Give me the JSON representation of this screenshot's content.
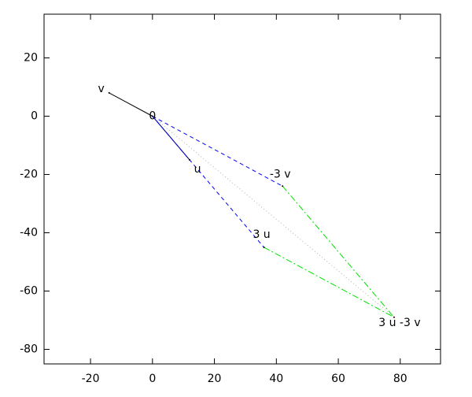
{
  "chart_data": {
    "type": "vector",
    "xlim": [
      -35,
      93
    ],
    "ylim": [
      -85,
      35
    ],
    "xticks": [
      -20,
      0,
      20,
      40,
      60,
      80
    ],
    "yticks": [
      -80,
      -60,
      -40,
      -20,
      0,
      20
    ],
    "points": [
      {
        "label": "v",
        "x": -14,
        "y": 8
      },
      {
        "label": "0",
        "x": 0,
        "y": 0
      },
      {
        "label": "u",
        "x": 12,
        "y": -15
      },
      {
        "label": "-3 v",
        "x": 42,
        "y": -24
      },
      {
        "label": "3 u",
        "x": 36,
        "y": -45
      },
      {
        "label": "3 u -3 v",
        "x": 78,
        "y": -69
      }
    ],
    "segments": [
      {
        "x": [
          0,
          -14
        ],
        "y": [
          0,
          8
        ],
        "color": "#000000",
        "dash": "solid"
      },
      {
        "x": [
          0,
          12
        ],
        "y": [
          0,
          -15
        ],
        "color": "#000080",
        "dash": "solid"
      },
      {
        "x": [
          0,
          36
        ],
        "y": [
          0,
          -45
        ],
        "color": "#0000ff",
        "dash": "dashed"
      },
      {
        "x": [
          0,
          42
        ],
        "y": [
          0,
          -24
        ],
        "color": "#0000ff",
        "dash": "dashed"
      },
      {
        "x": [
          36,
          78
        ],
        "y": [
          -45,
          -69
        ],
        "color": "#00e000",
        "dash": "dashdot"
      },
      {
        "x": [
          42,
          78
        ],
        "y": [
          -24,
          -69
        ],
        "color": "#00e000",
        "dash": "dashdot"
      },
      {
        "x": [
          0,
          78
        ],
        "y": [
          0,
          -69
        ],
        "color": "#b0b0b0",
        "dash": "dotted"
      }
    ]
  }
}
